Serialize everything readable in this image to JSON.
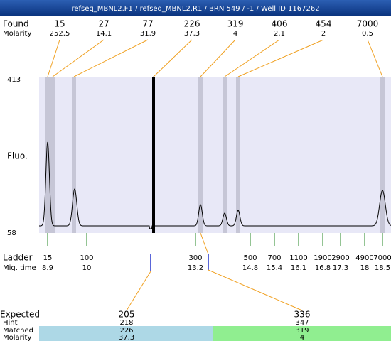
{
  "header": {
    "title": "refseq_MBNL2.F1 / refseq_MBNL2.R1 / BRN 549 / -1 / Well ID 1167262"
  },
  "found": {
    "label": "Found",
    "values": [
      15,
      27,
      77,
      226,
      319,
      406,
      454,
      7000
    ]
  },
  "molarity": {
    "label": "Molarity",
    "values": [
      252.5,
      14.1,
      31.9,
      37.3,
      4,
      2.1,
      2,
      0.5
    ]
  },
  "plot": {
    "ylabel": "Fluo.",
    "ymax": 413,
    "ymin": 58
  },
  "ladder": {
    "label": "Ladder",
    "sizes": [
      15,
      100,
      300,
      500,
      700,
      1100,
      1900,
      2900,
      4900,
      7000
    ]
  },
  "mig_time": {
    "label": "Mig. time",
    "values": [
      8.9,
      10,
      13.2,
      14.8,
      15.4,
      16.1,
      16.8,
      17.3,
      18,
      18.5
    ]
  },
  "expected": {
    "label": "Expected",
    "values": [
      205,
      336
    ]
  },
  "hint": {
    "label": "Hint",
    "values": [
      218,
      347
    ]
  },
  "matched": {
    "label": "Matched",
    "values": [
      226,
      319
    ]
  },
  "matched_molarity": {
    "label": "Molarity",
    "values": [
      37.3,
      4
    ]
  }
}
